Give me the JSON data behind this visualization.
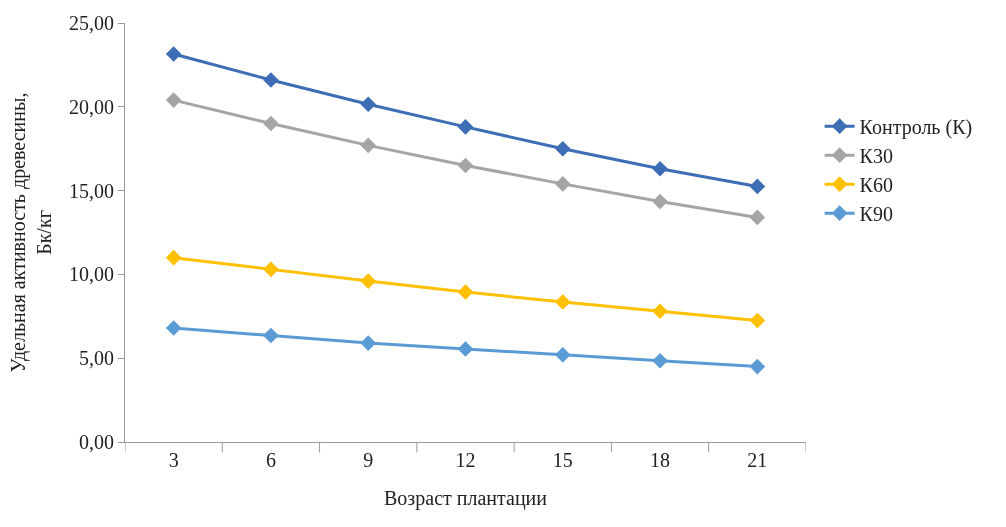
{
  "chart_data": {
    "type": "line",
    "xlabel": "Возраст плантации",
    "ylabel": "Удельная активность древесины, Бк/кг",
    "categories": [
      "3",
      "6",
      "9",
      "12",
      "15",
      "18",
      "21"
    ],
    "series": [
      {
        "name": "Контроль (К)",
        "color": "#3c6db5",
        "values": [
          23.15,
          21.6,
          20.15,
          18.8,
          17.5,
          16.3,
          15.25
        ]
      },
      {
        "name": "К30",
        "color": "#a5a5a5",
        "values": [
          20.4,
          19.0,
          17.7,
          16.5,
          15.4,
          14.35,
          13.4
        ]
      },
      {
        "name": "К60",
        "color": "#ffc000",
        "values": [
          11.0,
          10.3,
          9.6,
          8.95,
          8.35,
          7.8,
          7.25
        ]
      },
      {
        "name": "К90",
        "color": "#5b9bd5",
        "values": [
          6.8,
          6.35,
          5.9,
          5.55,
          5.2,
          4.85,
          4.5
        ]
      }
    ],
    "ylim": [
      0,
      25
    ],
    "yticks": [
      {
        "value": 0,
        "label": "0,00"
      },
      {
        "value": 5,
        "label": "5,00"
      },
      {
        "value": 10,
        "label": "10,00"
      },
      {
        "value": 15,
        "label": "15,00"
      },
      {
        "value": 20,
        "label": "20,00"
      },
      {
        "value": 25,
        "label": "25,00"
      }
    ],
    "grid": false,
    "legend": "right",
    "marker": "diamond",
    "line_style": "solid"
  }
}
